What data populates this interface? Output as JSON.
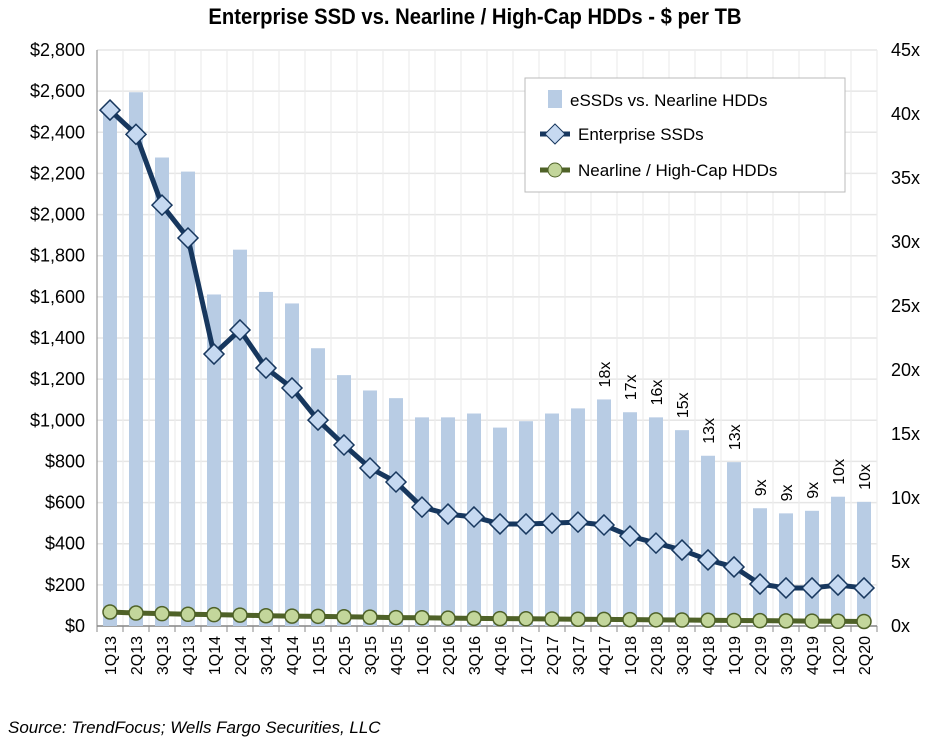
{
  "chart_data": {
    "type": "bar+line",
    "title": "Enterprise SSD vs. Nearline / High-Cap HDDs - $ per TB",
    "source": "Source: TrendFocus; Wells Fargo Securities, LLC",
    "categories": [
      "1Q13",
      "2Q13",
      "3Q13",
      "4Q13",
      "1Q14",
      "2Q14",
      "3Q14",
      "4Q14",
      "1Q15",
      "2Q15",
      "3Q15",
      "4Q15",
      "1Q16",
      "2Q16",
      "3Q16",
      "4Q16",
      "1Q17",
      "2Q17",
      "3Q17",
      "4Q17",
      "1Q18",
      "2Q18",
      "3Q18",
      "4Q18",
      "1Q19",
      "2Q19",
      "3Q19",
      "4Q19",
      "1Q20",
      "2Q20"
    ],
    "y_left": {
      "range": [
        0,
        2800
      ],
      "ticks": [
        "$0",
        "$200",
        "$400",
        "$600",
        "$800",
        "$1,000",
        "$1,200",
        "$1,400",
        "$1,600",
        "$1,800",
        "$2,000",
        "$2,200",
        "$2,400",
        "$2,600",
        "$2,800"
      ]
    },
    "y_right": {
      "range": [
        0,
        45
      ],
      "ticks": [
        "0x",
        "5x",
        "10x",
        "15x",
        "20x",
        "25x",
        "30x",
        "35x",
        "40x",
        "45x"
      ]
    },
    "grid": true,
    "legend_position": "top-right",
    "series": [
      {
        "name": "eSSDs vs. Nearline HDDs",
        "type": "bar",
        "axis": "right",
        "color": "#b8cce4",
        "values": [
          40.5,
          41.7,
          36.6,
          35.5,
          25.9,
          29.4,
          26.1,
          25.2,
          21.7,
          19.6,
          18.4,
          17.8,
          16.3,
          16.3,
          16.6,
          15.5,
          16.0,
          16.6,
          17.0,
          17.7,
          16.7,
          16.3,
          15.3,
          13.3,
          12.8,
          9.2,
          8.8,
          9.0,
          10.1,
          9.7
        ],
        "data_labels": [
          "",
          "",
          "",
          "",
          "",
          "",
          "",
          "",
          "",
          "",
          "",
          "",
          "",
          "",
          "",
          "",
          "",
          "",
          "",
          "18x",
          "17x",
          "16x",
          "15x",
          "13x",
          "13x",
          "9x",
          "9x",
          "9x",
          "10x",
          "10x"
        ]
      },
      {
        "name": "Enterprise SSDs",
        "type": "line",
        "axis": "left",
        "color": "#17375e",
        "marker": "diamond",
        "marker_fill": "#c6d9f1",
        "values": [
          2508,
          2390,
          2046,
          1886,
          1322,
          1439,
          1254,
          1157,
          1001,
          880,
          768,
          700,
          578,
          544,
          530,
          496,
          496,
          500,
          505,
          491,
          437,
          403,
          369,
          321,
          287,
          204,
          185,
          185,
          199,
          185
        ]
      },
      {
        "name": "Nearline / High-Cap HDDs",
        "type": "line",
        "axis": "left",
        "color": "#4f6228",
        "marker": "circle",
        "marker_fill": "#c3d69b",
        "values": [
          68,
          63,
          60,
          57,
          55,
          53,
          50,
          48,
          47,
          45,
          43,
          41,
          40,
          38,
          37,
          36,
          35,
          34,
          33,
          32,
          31,
          30,
          29,
          28,
          27,
          26,
          25,
          24,
          23,
          22
        ]
      }
    ]
  }
}
